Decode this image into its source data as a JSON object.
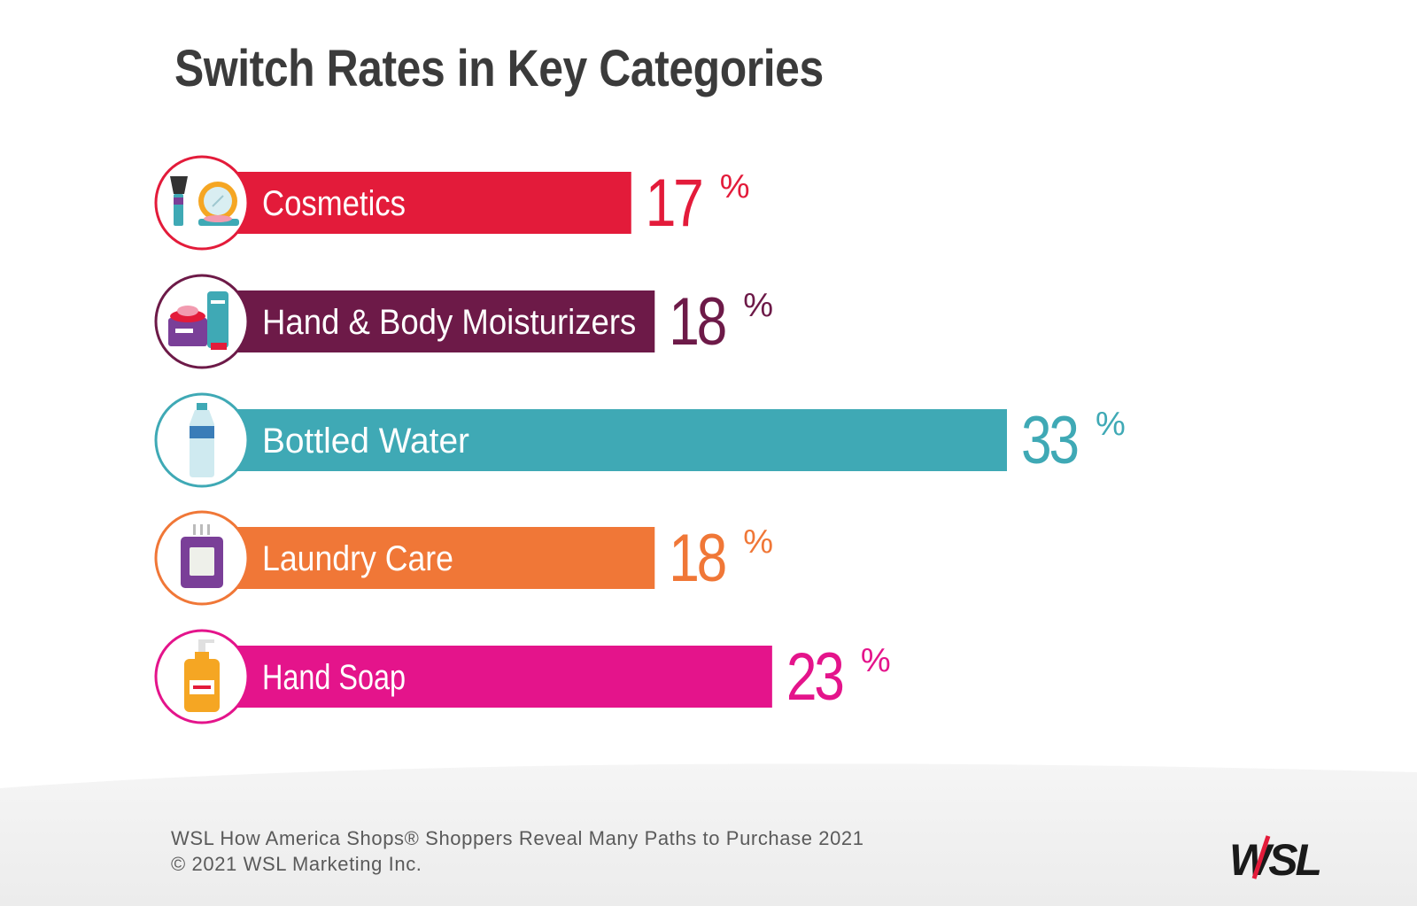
{
  "title": "Switch Rates in Key Categories",
  "chart_data": {
    "type": "bar",
    "orientation": "horizontal",
    "title": "Switch Rates in Key Categories",
    "unit": "%",
    "xlim": [
      0,
      33
    ],
    "grid": false,
    "categories": [
      "Cosmetics",
      "Hand & Body Moisturizers",
      "Bottled Water",
      "Laundry Care",
      "Hand Soap"
    ],
    "values": [
      17,
      18,
      33,
      18,
      23
    ],
    "value_labels": [
      "17",
      "18",
      "33",
      "18",
      "23"
    ],
    "colors": [
      "#e31b3a",
      "#6d1a48",
      "#3fa9b5",
      "#f07737",
      "#e4148b"
    ],
    "icons": [
      "cosmetics-icon",
      "moisturizer-icon",
      "water-bottle-icon",
      "laundry-detergent-icon",
      "soap-pump-icon"
    ]
  },
  "footer": {
    "source_line1": "WSL How America Shops® Shoppers Reveal Many Paths to Purchase 2021",
    "source_line2": "© 2021 WSL Marketing Inc.",
    "logo_text": "WSL",
    "logo_color": "#1a1a1a",
    "logo_accent": "#e31b3a"
  }
}
